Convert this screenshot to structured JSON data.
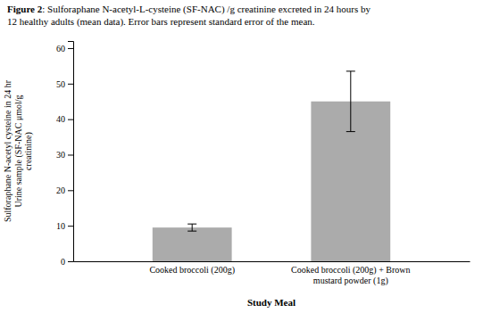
{
  "chart_data": {
    "type": "bar",
    "title": "Figure 2",
    "subtitle": ": Sulforaphane N-acetyl-L-cysteine (SF-NAC) /g creatinine excreted in 24 hours by\n12 healthy adults (mean data). Error bars represent standard error of the mean.",
    "categories": [
      "Cooked broccoli (200g)",
      "Cooked broccoli (200g) + Brown\nmustard powder (1g)"
    ],
    "values": [
      9.5,
      45.0
    ],
    "errors": [
      1.0,
      8.5
    ],
    "color": "#ABABAB",
    "ylim": [
      0,
      62
    ],
    "yticks": [
      0,
      10,
      20,
      30,
      40,
      50,
      60
    ],
    "ylabel": "Sulforaphane N-acetyl cysteine in 24 hr\nUrine sample (SF-NAC μmol/g\ncreatinine)",
    "xlabel": "Study Meal",
    "grid": false
  }
}
